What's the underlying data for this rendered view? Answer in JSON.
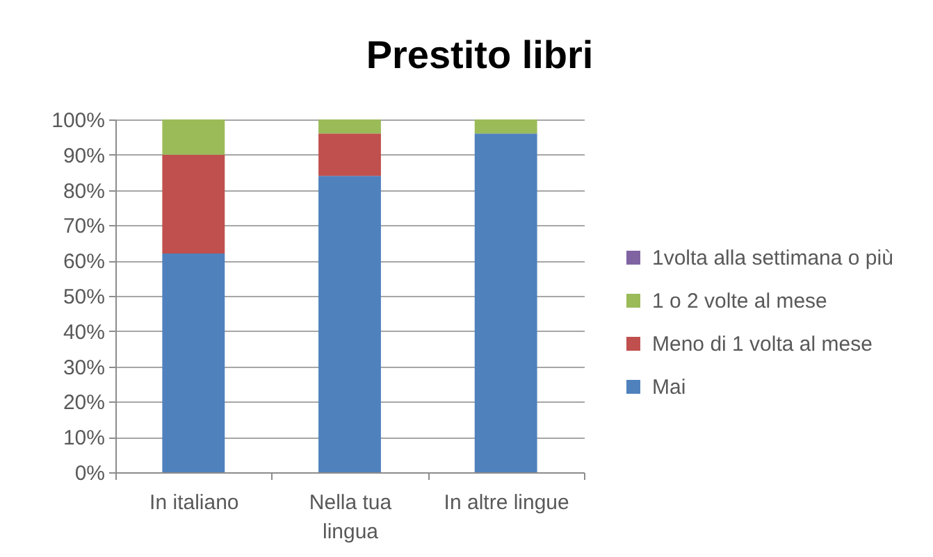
{
  "chart_data": {
    "type": "bar",
    "stacked": true,
    "title": "Prestito libri",
    "categories": [
      "In italiano",
      "Nella tua lingua",
      "In altre lingue"
    ],
    "series": [
      {
        "name": "Mai",
        "color": "#4f81bd",
        "values": [
          62,
          84,
          96
        ]
      },
      {
        "name": "Meno di 1 volta al mese",
        "color": "#c0504d",
        "values": [
          28,
          12,
          0
        ]
      },
      {
        "name": "1 o 2 volte al mese",
        "color": "#9bbb59",
        "values": [
          10,
          4,
          4
        ]
      },
      {
        "name": "1volta alla settimana o più",
        "color": "#8064a2",
        "values": [
          0,
          0,
          0
        ]
      }
    ],
    "ylim": [
      0,
      100
    ],
    "yticks": [
      {
        "value": 0,
        "label": "0%"
      },
      {
        "value": 10,
        "label": "10%"
      },
      {
        "value": 20,
        "label": "20%"
      },
      {
        "value": 30,
        "label": "30%"
      },
      {
        "value": 40,
        "label": "40%"
      },
      {
        "value": 50,
        "label": "50%"
      },
      {
        "value": 60,
        "label": "60%"
      },
      {
        "value": 70,
        "label": "70%"
      },
      {
        "value": 80,
        "label": "80%"
      },
      {
        "value": 90,
        "label": "90%"
      },
      {
        "value": 100,
        "label": "100%"
      }
    ],
    "grid": "y",
    "legend": "right"
  }
}
